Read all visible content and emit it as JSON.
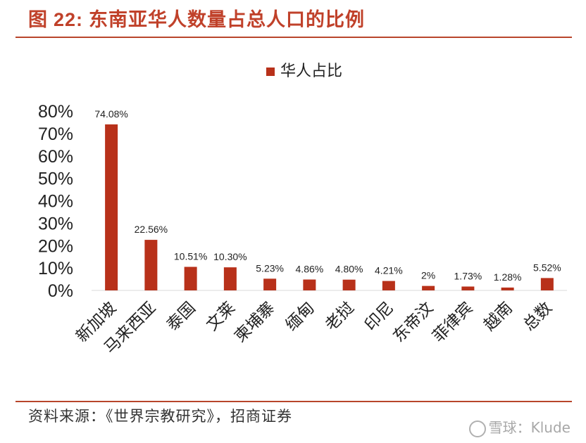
{
  "header": {
    "figure_label": "图",
    "figure_number": "22:",
    "title": "东南亚华人数量占总人口的比例"
  },
  "chart_data": {
    "type": "bar",
    "title": "",
    "categories": [
      "新加坡",
      "马来西亚",
      "泰国",
      "文莱",
      "柬埔寨",
      "缅甸",
      "老挝",
      "印尼",
      "东帝汶",
      "菲律宾",
      "越南",
      "总数"
    ],
    "series": [
      {
        "name": "华人占比",
        "values": [
          74.08,
          22.56,
          10.51,
          10.3,
          5.23,
          4.86,
          4.8,
          4.21,
          2,
          1.73,
          1.28,
          5.52
        ],
        "data_labels": [
          "74.08%",
          "22.56%",
          "10.51%",
          "10.30%",
          "5.23%",
          "4.86%",
          "4.80%",
          "4.21%",
          "2%",
          "1.73%",
          "1.28%",
          "5.52%"
        ]
      }
    ],
    "ylim": [
      0,
      80
    ],
    "yticks": [
      "0%",
      "10%",
      "20%",
      "30%",
      "40%",
      "50%",
      "60%",
      "70%",
      "80%"
    ],
    "xlabel": "",
    "ylabel": "",
    "grid": false,
    "legend_position": "top",
    "bar_color": "#b8311a"
  },
  "footer": {
    "source": "资料来源：《世界宗教研究》，招商证券",
    "watermark": "雪球：Klude"
  }
}
